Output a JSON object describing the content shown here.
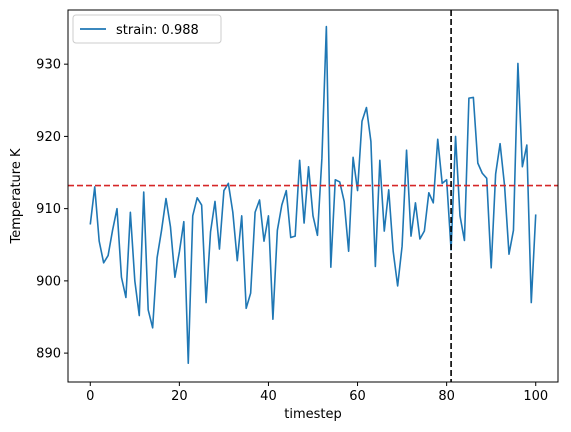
{
  "chart_data": {
    "type": "line",
    "xlabel": "timestep",
    "ylabel": "Temperature K",
    "xlim": [
      -5,
      105
    ],
    "ylim": [
      886,
      937.5
    ],
    "xticks": [
      0,
      20,
      40,
      60,
      80,
      100
    ],
    "yticks": [
      890,
      900,
      910,
      920,
      930
    ],
    "grid": false,
    "legend_position": "top-left",
    "series": [
      {
        "name": "strain: 0.988",
        "color": "#1f77b4",
        "x": [
          0,
          1,
          2,
          3,
          4,
          5,
          6,
          7,
          8,
          9,
          10,
          11,
          12,
          13,
          14,
          15,
          16,
          17,
          18,
          19,
          20,
          21,
          22,
          23,
          24,
          25,
          26,
          27,
          28,
          29,
          30,
          31,
          32,
          33,
          34,
          35,
          36,
          37,
          38,
          39,
          40,
          41,
          42,
          43,
          44,
          45,
          46,
          47,
          48,
          49,
          50,
          51,
          52,
          53,
          54,
          55,
          56,
          57,
          58,
          59,
          60,
          61,
          62,
          63,
          64,
          65,
          66,
          67,
          68,
          69,
          70,
          71,
          72,
          73,
          74,
          75,
          76,
          77,
          78,
          79,
          80,
          81,
          82,
          83,
          84,
          85,
          86,
          87,
          88,
          89,
          90,
          91,
          92,
          93,
          94,
          95,
          96,
          97,
          98,
          99,
          100
        ],
        "y": [
          907.8,
          913.0,
          905.5,
          902.5,
          903.5,
          907.0,
          910.0,
          900.5,
          897.7,
          909.5,
          900.0,
          895.2,
          912.3,
          896.0,
          893.5,
          903.2,
          907.0,
          911.4,
          907.5,
          900.5,
          904.0,
          908.2,
          888.6,
          909.0,
          911.5,
          910.5,
          897.0,
          906.8,
          911.0,
          904.4,
          912.5,
          913.5,
          909.5,
          902.8,
          909.0,
          896.2,
          898.3,
          909.5,
          911.2,
          905.5,
          909.0,
          894.7,
          907.0,
          910.5,
          912.5,
          906.0,
          906.2,
          916.7,
          908.0,
          915.8,
          909.0,
          906.3,
          917.0,
          935.2,
          901.9,
          914.0,
          913.7,
          911.0,
          904.1,
          917.1,
          912.5,
          922.1,
          924.0,
          919.3,
          902.0,
          916.7,
          906.9,
          912.6,
          904.1,
          899.3,
          904.8,
          918.1,
          906.2,
          910.8,
          905.8,
          906.9,
          912.2,
          910.8,
          919.6,
          913.5,
          914.0,
          904.3,
          920.0,
          909.0,
          905.6,
          925.3,
          925.4,
          916.3,
          914.9,
          914.2,
          901.8,
          914.8,
          919.0,
          913.2,
          903.7,
          907.0,
          930.1,
          915.8,
          918.8,
          897.0,
          909.2
        ]
      }
    ],
    "hlines": [
      {
        "y": 913.2,
        "color": "#d62728",
        "style": "dashed"
      }
    ],
    "vlines": [
      {
        "x": 81,
        "color": "#000000",
        "style": "dashed"
      }
    ]
  }
}
